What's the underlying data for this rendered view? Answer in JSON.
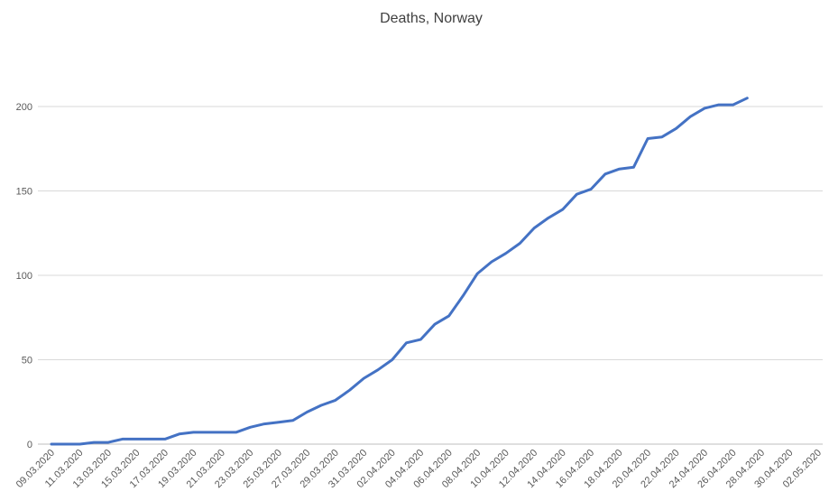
{
  "chart_data": {
    "type": "line",
    "title": "Deaths, Norway",
    "categories": [
      "09.03.2020",
      null,
      "11.03.2020",
      null,
      "13.03.2020",
      null,
      "15.03.2020",
      null,
      "17.03.2020",
      null,
      "19.03.2020",
      null,
      "21.03.2020",
      null,
      "23.03.2020",
      null,
      "25.03.2020",
      null,
      "27.03.2020",
      null,
      "29.03.2020",
      null,
      "31.03.2020",
      null,
      "02.04.2020",
      null,
      "04.04.2020",
      null,
      "06.04.2020",
      null,
      "08.04.2020",
      null,
      "10.04.2020",
      null,
      "12.04.2020",
      null,
      "14.04.2020",
      null,
      "16.04.2020",
      null,
      "18.04.2020",
      null,
      "20.04.2020",
      null,
      "22.04.2020",
      null,
      "24.04.2020",
      null,
      "26.04.2020",
      null,
      "28.04.2020",
      null,
      "30.04.2020",
      null,
      "02.05.2020"
    ],
    "values": [
      0,
      0,
      0,
      1,
      1,
      3,
      3,
      3,
      3,
      6,
      7,
      7,
      7,
      7,
      10,
      12,
      13,
      14,
      19,
      23,
      26,
      32,
      39,
      44,
      50,
      60,
      62,
      71,
      76,
      88,
      101,
      108,
      113,
      119,
      128,
      134,
      139,
      148,
      151,
      160,
      163,
      164,
      181,
      182,
      187,
      194,
      199,
      201,
      201,
      205,
      null,
      null,
      null,
      null,
      null
    ],
    "color": "#4472c4",
    "ylim": [
      0,
      200
    ],
    "yticks": [
      0,
      50,
      100,
      150,
      200
    ],
    "grid": true
  }
}
